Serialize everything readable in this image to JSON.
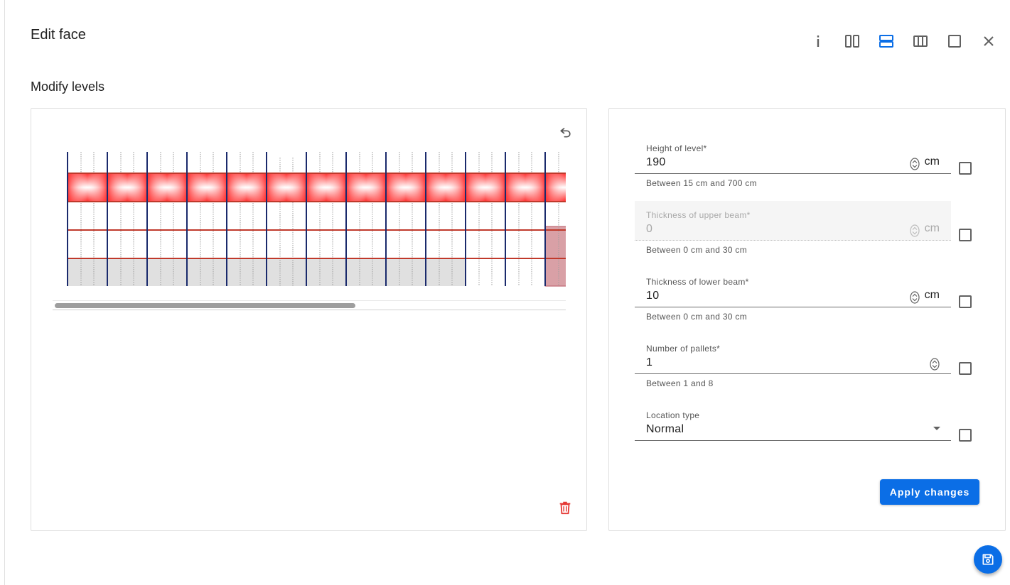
{
  "header": {
    "title": "Edit face",
    "subtitle": "Modify levels"
  },
  "toolbar": {
    "buttons": [
      {
        "name": "info-icon",
        "active": false
      },
      {
        "name": "two-columns-icon",
        "active": false
      },
      {
        "name": "two-rows-icon",
        "active": true
      },
      {
        "name": "three-columns-icon",
        "active": false
      },
      {
        "name": "single-panel-icon",
        "active": false
      },
      {
        "name": "close-icon",
        "active": false
      }
    ]
  },
  "colors": {
    "accent": "#0b6ee6",
    "upright": "#1a2a6c",
    "beam": "#c0392b",
    "beam_highlight": "#ff2a2a",
    "floor": "#e0e0e0",
    "selected_bay": "#d9a0a6",
    "danger": "#e53935"
  },
  "form": {
    "height": {
      "label": "Height of level*",
      "value": "190",
      "unit": "cm",
      "hint": "Between 15 cm and 700 cm"
    },
    "upper_beam": {
      "label": "Thickness of upper beam*",
      "value": "0",
      "unit": "cm",
      "hint": "Between 0 cm and 30 cm"
    },
    "lower_beam": {
      "label": "Thickness of lower beam*",
      "value": "10",
      "unit": "cm",
      "hint": "Between 0 cm and 30 cm"
    },
    "pallets": {
      "label": "Number of pallets*",
      "value": "1",
      "hint": "Between 1 and 8"
    },
    "location": {
      "label": "Location type",
      "value": "Normal"
    },
    "apply_label": "Apply changes"
  }
}
